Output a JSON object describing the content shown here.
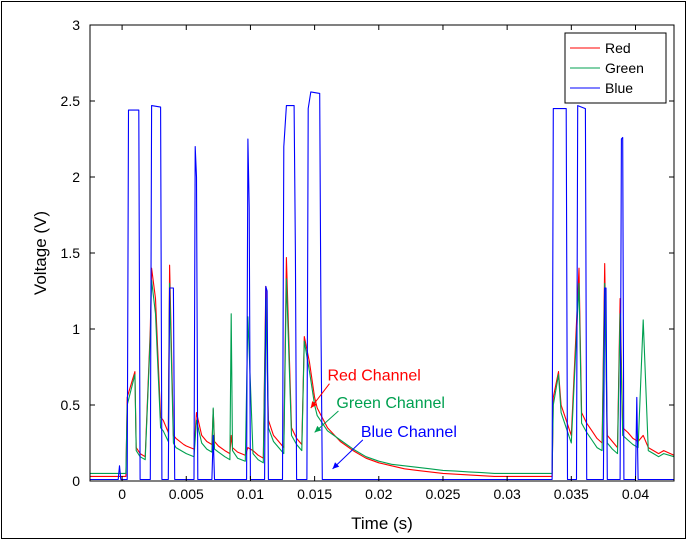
{
  "chart_data": {
    "type": "line",
    "xlabel": "Time (s)",
    "ylabel": "Voltage (V)",
    "xlim": [
      -0.0025,
      0.043
    ],
    "ylim": [
      0,
      3
    ],
    "xticks": [
      0,
      0.005,
      0.01,
      0.015,
      0.02,
      0.025,
      0.03,
      0.035,
      0.04
    ],
    "xtick_labels": [
      "0",
      "0.005",
      "0.01",
      "0.015",
      "0.02",
      "0.025",
      "0.03",
      "0.035",
      "0.04"
    ],
    "yticks": [
      0,
      0.5,
      1,
      1.5,
      2,
      2.5,
      3
    ],
    "ytick_labels": [
      "0",
      "0.5",
      "1",
      "1.5",
      "2",
      "2.5",
      "3"
    ],
    "grid": false,
    "legend_position": "top-right",
    "series": [
      {
        "name": "Red",
        "color": "#ff0000",
        "x": [
          -0.0025,
          0.0003,
          0.0004,
          0.001,
          0.0011,
          0.0014,
          0.0018,
          0.0022,
          0.0023,
          0.0026,
          0.003,
          0.0032,
          0.0036,
          0.0037,
          0.004,
          0.0042,
          0.0048,
          0.005,
          0.0056,
          0.0058,
          0.0062,
          0.0066,
          0.007,
          0.0071,
          0.0072,
          0.0075,
          0.008,
          0.0084,
          0.0085,
          0.0086,
          0.009,
          0.0096,
          0.0098,
          0.0102,
          0.0106,
          0.011,
          0.0112,
          0.0114,
          0.0118,
          0.0122,
          0.0126,
          0.0128,
          0.0132,
          0.0136,
          0.014,
          0.0142,
          0.0146,
          0.015,
          0.0152,
          0.016,
          0.017,
          0.018,
          0.019,
          0.02,
          0.021,
          0.022,
          0.023,
          0.024,
          0.025,
          0.026,
          0.027,
          0.028,
          0.029,
          0.03,
          0.031,
          0.032,
          0.0335,
          0.0336,
          0.034,
          0.0342,
          0.0346,
          0.035,
          0.0356,
          0.0358,
          0.0362,
          0.0366,
          0.037,
          0.0374,
          0.0376,
          0.0378,
          0.0382,
          0.0386,
          0.0388,
          0.039,
          0.0394,
          0.0398,
          0.0402,
          0.0406,
          0.041,
          0.0414,
          0.0418,
          0.0422,
          0.043
        ],
        "y": [
          0.03,
          0.03,
          0.55,
          0.72,
          0.22,
          0.18,
          0.16,
          1.0,
          1.4,
          1.2,
          0.42,
          0.4,
          0.32,
          1.42,
          0.3,
          0.28,
          0.24,
          0.23,
          0.21,
          0.45,
          0.3,
          0.26,
          0.24,
          0.47,
          0.26,
          0.23,
          0.2,
          0.18,
          0.3,
          0.22,
          0.19,
          0.17,
          0.22,
          0.2,
          0.17,
          0.15,
          1.28,
          0.4,
          0.3,
          0.26,
          0.22,
          1.47,
          0.35,
          0.28,
          0.24,
          0.95,
          0.78,
          0.55,
          0.48,
          0.35,
          0.26,
          0.2,
          0.15,
          0.12,
          0.1,
          0.08,
          0.07,
          0.06,
          0.05,
          0.045,
          0.04,
          0.035,
          0.03,
          0.03,
          0.03,
          0.03,
          0.03,
          0.55,
          0.72,
          0.5,
          0.4,
          0.3,
          1.4,
          0.45,
          0.38,
          0.33,
          0.28,
          0.25,
          1.43,
          0.3,
          0.26,
          0.22,
          1.2,
          0.35,
          0.32,
          0.28,
          0.26,
          0.3,
          0.22,
          0.2,
          0.18,
          0.2,
          0.17
        ]
      },
      {
        "name": "Green",
        "color": "#00a050",
        "x": [
          -0.0025,
          0.0003,
          0.0004,
          0.001,
          0.0011,
          0.0014,
          0.0018,
          0.0022,
          0.0023,
          0.0026,
          0.003,
          0.0032,
          0.0036,
          0.0037,
          0.004,
          0.0042,
          0.0048,
          0.005,
          0.0056,
          0.0058,
          0.0062,
          0.0066,
          0.007,
          0.0071,
          0.0072,
          0.0075,
          0.008,
          0.0084,
          0.0085,
          0.0086,
          0.009,
          0.0096,
          0.0098,
          0.0102,
          0.0106,
          0.011,
          0.0112,
          0.0114,
          0.0118,
          0.0122,
          0.0126,
          0.0128,
          0.0132,
          0.0136,
          0.014,
          0.0142,
          0.0146,
          0.015,
          0.0152,
          0.016,
          0.017,
          0.018,
          0.019,
          0.02,
          0.021,
          0.022,
          0.023,
          0.024,
          0.025,
          0.026,
          0.027,
          0.028,
          0.029,
          0.03,
          0.031,
          0.032,
          0.0335,
          0.0336,
          0.034,
          0.0342,
          0.0346,
          0.035,
          0.0356,
          0.0358,
          0.0362,
          0.0366,
          0.037,
          0.0374,
          0.0376,
          0.0378,
          0.0382,
          0.0386,
          0.0388,
          0.039,
          0.0394,
          0.0398,
          0.0402,
          0.0406,
          0.041,
          0.0414,
          0.0418,
          0.0422,
          0.043
        ],
        "y": [
          0.05,
          0.05,
          0.5,
          0.7,
          0.2,
          0.16,
          0.14,
          0.95,
          1.32,
          1.1,
          0.35,
          0.33,
          0.26,
          1.3,
          0.25,
          0.22,
          0.19,
          0.18,
          0.16,
          0.4,
          0.25,
          0.21,
          0.19,
          0.48,
          0.21,
          0.19,
          0.16,
          0.14,
          1.1,
          0.2,
          0.15,
          0.13,
          1.08,
          0.18,
          0.14,
          0.12,
          1.2,
          0.35,
          0.26,
          0.22,
          0.18,
          1.33,
          0.3,
          0.24,
          0.2,
          0.92,
          0.72,
          0.5,
          0.43,
          0.33,
          0.27,
          0.21,
          0.16,
          0.13,
          0.11,
          0.1,
          0.09,
          0.08,
          0.07,
          0.065,
          0.06,
          0.055,
          0.05,
          0.05,
          0.05,
          0.05,
          0.05,
          0.5,
          0.7,
          0.45,
          0.35,
          0.25,
          1.3,
          0.38,
          0.32,
          0.27,
          0.22,
          0.2,
          1.3,
          0.25,
          0.21,
          0.18,
          1.1,
          0.3,
          0.27,
          0.24,
          0.22,
          1.06,
          0.2,
          0.18,
          0.16,
          0.18,
          0.16
        ]
      },
      {
        "name": "Blue",
        "color": "#0000ff",
        "x": [
          -0.0025,
          -0.0003,
          -0.0002,
          -0.0001,
          0.0004,
          0.0005,
          0.0013,
          0.0014,
          0.0022,
          0.0023,
          0.003,
          0.0031,
          0.0036,
          0.0037,
          0.004,
          0.0041,
          0.0056,
          0.0057,
          0.0058,
          0.0059,
          0.007,
          0.0071,
          0.0072,
          0.0073,
          0.0097,
          0.0098,
          0.0099,
          0.01,
          0.0111,
          0.0112,
          0.0113,
          0.0114,
          0.0125,
          0.0126,
          0.0128,
          0.0134,
          0.0135,
          0.0136,
          0.0144,
          0.0145,
          0.0147,
          0.0154,
          0.0155,
          0.0156,
          0.02,
          0.03,
          0.0335,
          0.0336,
          0.0337,
          0.0346,
          0.0347,
          0.0354,
          0.0355,
          0.0361,
          0.0362,
          0.0375,
          0.0376,
          0.0377,
          0.0378,
          0.0388,
          0.0389,
          0.039,
          0.0391,
          0.04,
          0.0401,
          0.0402,
          0.0403,
          0.043
        ],
        "y": [
          0.01,
          0.01,
          0.1,
          0.01,
          0.01,
          2.44,
          2.44,
          0.01,
          0.01,
          2.47,
          2.46,
          0.01,
          0.01,
          1.27,
          1.27,
          0.01,
          0.01,
          2.2,
          2.0,
          0.01,
          0.01,
          0.3,
          0.01,
          0.01,
          0.01,
          2.25,
          1.8,
          0.01,
          0.01,
          1.28,
          1.25,
          0.01,
          0.01,
          2.2,
          2.47,
          2.47,
          1.5,
          0.01,
          0.01,
          2.45,
          2.56,
          2.55,
          1.0,
          0.01,
          0.01,
          0.01,
          0.01,
          2.45,
          2.45,
          2.45,
          0.01,
          0.01,
          2.47,
          2.45,
          0.01,
          0.01,
          1.27,
          1.27,
          0.01,
          0.01,
          2.25,
          2.26,
          0.01,
          0.01,
          0.55,
          0.01,
          0.01,
          0.01
        ]
      }
    ],
    "annotations": [
      {
        "text": "Red Channel",
        "color": "#ff0000",
        "text_x": 0.016,
        "text_y": 0.66,
        "arrow_to_x": 0.0147,
        "arrow_to_y": 0.48
      },
      {
        "text": "Green Channel",
        "color": "#00a050",
        "text_x": 0.0167,
        "text_y": 0.48,
        "arrow_to_x": 0.015,
        "arrow_to_y": 0.32
      },
      {
        "text": "Blue Channel",
        "color": "#0000ff",
        "text_x": 0.0186,
        "text_y": 0.29,
        "arrow_to_x": 0.0164,
        "arrow_to_y": 0.08
      }
    ]
  }
}
